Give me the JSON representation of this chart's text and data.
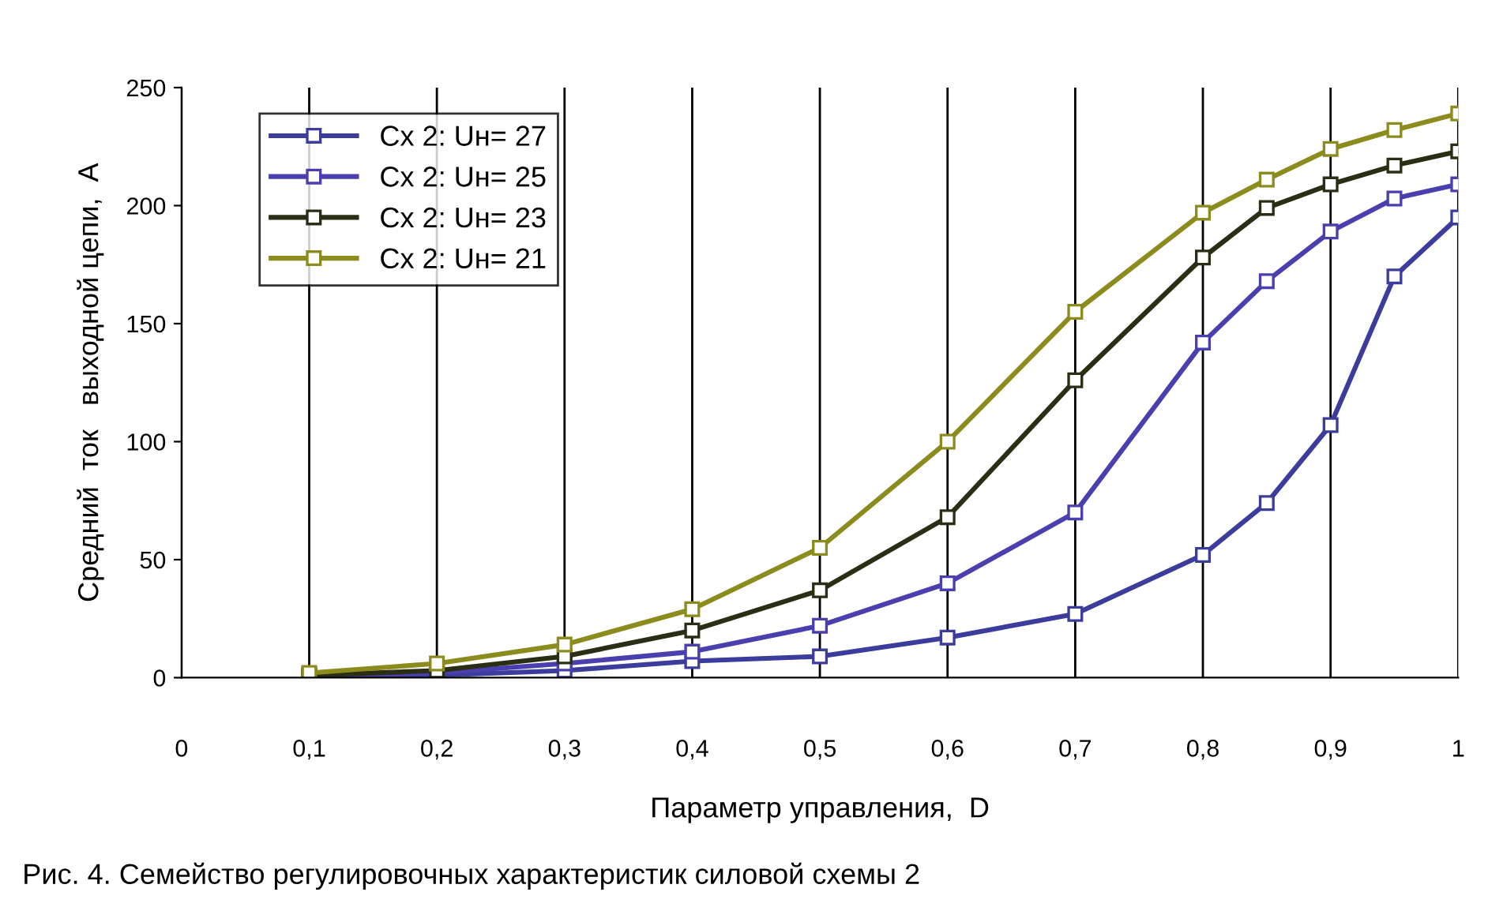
{
  "chart_data": {
    "type": "line",
    "xlabel": "Параметр управления,  D",
    "ylabel": "Средний  ток   выходной цепи,  А",
    "annotations": [
      "Рис. 4. Семейство регулировочных характеристик силовой схемы 2"
    ],
    "x": [
      0.1,
      0.2,
      0.3,
      0.4,
      0.5,
      0.6,
      0.7,
      0.8,
      0.85,
      0.9,
      0.95,
      1
    ],
    "series": [
      {
        "name": "Сх 2: Uн= 27",
        "color": "#3c3c9c",
        "values": [
          0.5,
          1,
          3,
          7,
          9,
          17,
          27,
          52,
          74,
          107,
          170,
          195
        ]
      },
      {
        "name": "Сх 2: Uн= 25",
        "color": "#4a3fae",
        "values": [
          0.5,
          2,
          6,
          11,
          22,
          40,
          70,
          142,
          168,
          189,
          203,
          209
        ]
      },
      {
        "name": "Сх 2: Uн= 23",
        "color": "#2a2e14",
        "values": [
          1,
          3,
          9,
          20,
          37,
          68,
          126,
          178,
          199,
          209,
          217,
          223
        ]
      },
      {
        "name": "Сх 2: Uн= 21",
        "color": "#8c8c1e",
        "values": [
          2,
          6,
          14,
          29,
          55,
          100,
          155,
          197,
          211,
          224,
          232,
          239
        ]
      }
    ],
    "xlim": [
      0,
      1
    ],
    "ylim": [
      0,
      250
    ],
    "xticks": [
      0,
      {
        "value": 0.1,
        "label": "0,1"
      },
      {
        "value": 0.2,
        "label": "0,2"
      },
      {
        "value": 0.3,
        "label": "0,3"
      },
      {
        "value": 0.4,
        "label": "0,4"
      },
      {
        "value": 0.5,
        "label": "0,5"
      },
      {
        "value": 0.6,
        "label": "0,6"
      },
      {
        "value": 0.7,
        "label": "0,7"
      },
      {
        "value": 0.8,
        "label": "0,8"
      },
      {
        "value": 0.9,
        "label": "0,9"
      },
      1
    ],
    "yticks": [
      0,
      50,
      100,
      150,
      200,
      250
    ],
    "grid": "x",
    "legend": "top left",
    "marker": "square",
    "line_style": "solid"
  }
}
